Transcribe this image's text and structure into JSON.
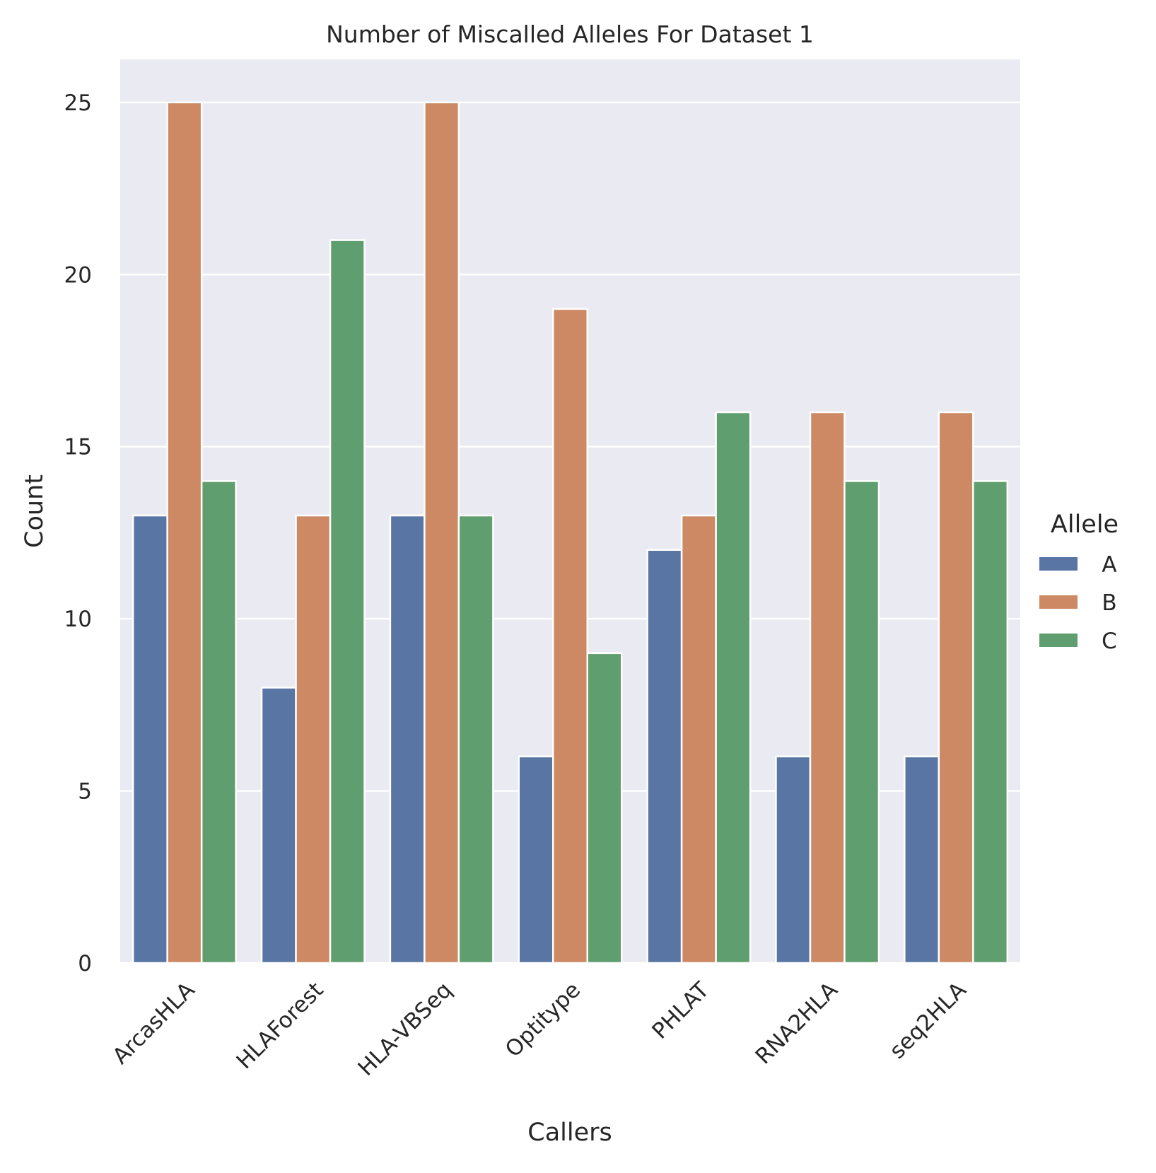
{
  "chart_data": {
    "type": "bar",
    "title": "Number of Miscalled Alleles For Dataset 1",
    "xlabel": "Callers",
    "ylabel": "Count",
    "categories": [
      "ArcasHLA",
      "HLAForest",
      "HLA-VBSeq",
      "Optitype",
      "PHLAT",
      "RNA2HLA",
      "seq2HLA"
    ],
    "series": [
      {
        "name": "A",
        "color": "#5875a4",
        "values": [
          13,
          8,
          13,
          6,
          12,
          6,
          6
        ]
      },
      {
        "name": "B",
        "color": "#cc8963",
        "values": [
          25,
          13,
          25,
          19,
          13,
          16,
          16
        ]
      },
      {
        "name": "C",
        "color": "#5f9e6e",
        "values": [
          14,
          21,
          13,
          9,
          16,
          14,
          14
        ]
      }
    ],
    "yticks": [
      0,
      5,
      10,
      15,
      20,
      25
    ],
    "ylim": [
      0,
      26.25
    ],
    "grid": true,
    "legend": {
      "title": "Allele",
      "placement": "right"
    },
    "background_color": "#eaeaf2"
  }
}
